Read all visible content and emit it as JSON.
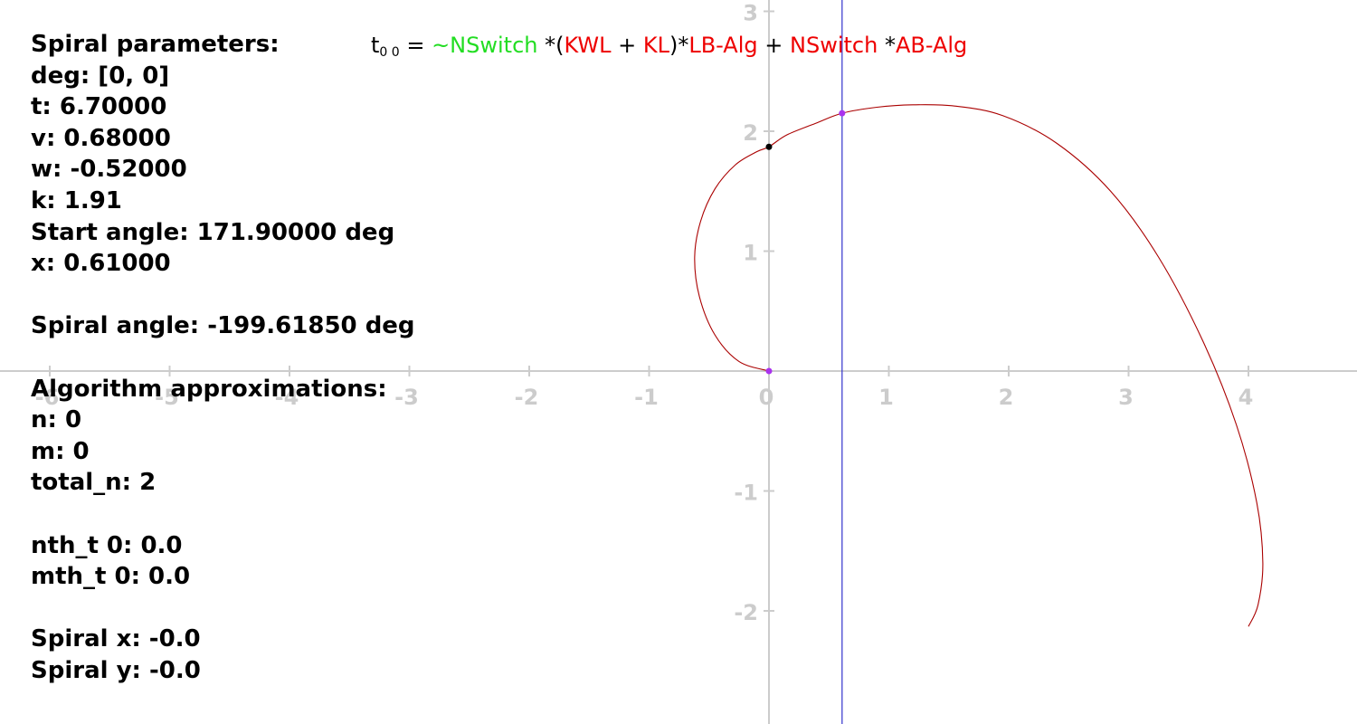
{
  "info_panel": {
    "lines": [
      "Spiral parameters:",
      "deg: [0, 0]",
      "t: 6.70000",
      "v: 0.68000",
      "w: -0.52000",
      "k: 1.91",
      "Start angle: 171.90000 deg",
      "x: 0.61000",
      "",
      "Spiral angle: -199.61850 deg",
      "",
      "Algorithm approximations:",
      "n: 0",
      "m: 0",
      "total_n: 2",
      "",
      "nth_t 0: 0.0",
      "mth_t 0: 0.0",
      "",
      "Spiral x: -0.0",
      "Spiral y: -0.0"
    ]
  },
  "formula": {
    "tokens": [
      {
        "text": "t",
        "color": "#000000"
      },
      {
        "text": "0 0",
        "color": "#000000",
        "sub": true
      },
      {
        "text": " = ",
        "color": "#000000"
      },
      {
        "text": "~NSwitch",
        "color": "#22dd22"
      },
      {
        "text": " *(",
        "color": "#000000"
      },
      {
        "text": "KWL",
        "color": "#ee0000"
      },
      {
        "text": " + ",
        "color": "#000000"
      },
      {
        "text": "KL",
        "color": "#ee0000"
      },
      {
        "text": ")*",
        "color": "#000000"
      },
      {
        "text": "LB-Alg",
        "color": "#ee0000"
      },
      {
        "text": " + ",
        "color": "#000000"
      },
      {
        "text": "NSwitch",
        "color": "#ee0000"
      },
      {
        "text": " *",
        "color": "#000000"
      },
      {
        "text": "AB-Alg",
        "color": "#ee0000"
      }
    ]
  },
  "chart_data": {
    "type": "line",
    "title": "",
    "xlabel": "",
    "ylabel": "",
    "xlim": [
      -6.4,
      4.9
    ],
    "ylim": [
      -2.95,
      3.05
    ],
    "x_ticks": [
      "-6",
      "-5",
      "-4",
      "-3",
      "-2",
      "-1",
      "0",
      "1",
      "2",
      "3",
      "4"
    ],
    "x_tick_values": [
      -6,
      -5,
      -4,
      -3,
      -2,
      -1,
      0,
      1,
      2,
      3,
      4
    ],
    "y_ticks": [
      "3",
      "2",
      "1",
      "-1",
      "-2"
    ],
    "y_tick_values": [
      3,
      2,
      1,
      -1,
      -2
    ],
    "grid": false,
    "colors": {
      "axis": "#cccccc",
      "curve": "#aa0000",
      "vertical_line": "#3333cc",
      "marker_magenta": "#aa33ee",
      "marker_black": "#000000"
    },
    "series": [
      {
        "x": [
          0.0,
          -0.25,
          -0.45,
          -0.58,
          -0.62,
          -0.57,
          -0.45,
          -0.28,
          -0.1,
          0.0,
          0.15,
          0.4,
          0.61,
          0.9,
          1.2,
          1.55,
          1.95,
          2.4,
          2.85,
          3.25,
          3.62,
          3.9,
          4.07,
          4.12,
          4.08,
          4.0
        ],
        "y": [
          0.0,
          0.08,
          0.3,
          0.62,
          0.95,
          1.25,
          1.52,
          1.72,
          1.83,
          1.87,
          1.97,
          2.07,
          2.15,
          2.2,
          2.22,
          2.21,
          2.13,
          1.9,
          1.5,
          0.95,
          0.25,
          -0.45,
          -1.1,
          -1.6,
          -1.95,
          -2.13
        ]
      }
    ],
    "vertical_line_x": 0.61,
    "markers": [
      {
        "x": 0.0,
        "y": 0.0,
        "color": "#aa33ee"
      },
      {
        "x": 0.61,
        "y": 2.15,
        "color": "#aa33ee"
      },
      {
        "x": 0.0,
        "y": 1.87,
        "color": "#000000"
      }
    ]
  }
}
